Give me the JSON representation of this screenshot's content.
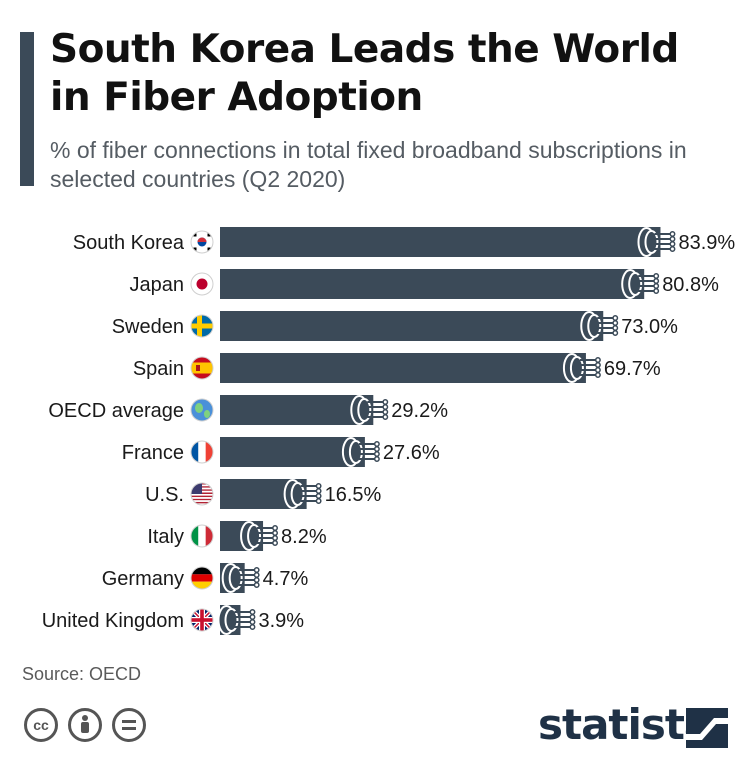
{
  "title": "South Korea Leads the World in Fiber Adoption",
  "subtitle": "% of fiber connections in total fixed broadband subscriptions in selected countries (Q2 2020)",
  "source": "Source: OECD",
  "brand": "statista",
  "colors": {
    "bar": "#3b4a58",
    "accent": "#3b4a58",
    "brand": "#1f3146"
  },
  "chart_data": {
    "type": "bar",
    "orientation": "horizontal",
    "categories": [
      "South Korea",
      "Japan",
      "Sweden",
      "Spain",
      "OECD average",
      "France",
      "U.S.",
      "Italy",
      "Germany",
      "United Kingdom"
    ],
    "values": [
      83.9,
      80.8,
      73.0,
      69.7,
      29.2,
      27.6,
      16.5,
      8.2,
      4.7,
      3.9
    ],
    "value_labels": [
      "83.9%",
      "80.8%",
      "73.0%",
      "69.7%",
      "29.2%",
      "27.6%",
      "16.5%",
      "8.2%",
      "4.7%",
      "3.9%"
    ],
    "flag_icons": [
      "south-korea-flag-icon",
      "japan-flag-icon",
      "sweden-flag-icon",
      "spain-flag-icon",
      "globe-icon",
      "france-flag-icon",
      "usa-flag-icon",
      "italy-flag-icon",
      "germany-flag-icon",
      "uk-flag-icon"
    ],
    "title": "South Korea Leads the World in Fiber Adoption",
    "xlabel": "",
    "ylabel": "",
    "xlim": [
      0,
      100
    ],
    "grid": false,
    "legend": "none"
  }
}
